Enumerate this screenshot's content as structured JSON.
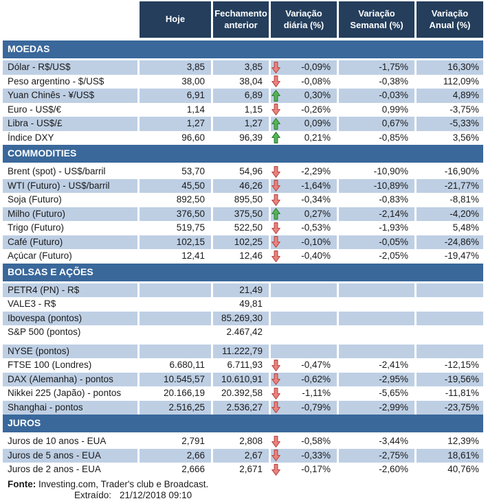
{
  "columns": [
    {
      "label": "Hoje"
    },
    {
      "label": "Fechamento anterior"
    },
    {
      "label": "Variação diária (%)"
    },
    {
      "label": "Variação Semanal (%)"
    },
    {
      "label": "Variação Anual (%)"
    }
  ],
  "sections": [
    {
      "title": "MOEDAS",
      "rows": [
        {
          "label": "Dólar - R$/US$",
          "hoje": "3,85",
          "fechamento": "3,85",
          "arrow": "down",
          "daily": "-0,09%",
          "weekly": "-1,75%",
          "annual": "16,30%"
        },
        {
          "label": "Peso argentino - $/US$",
          "hoje": "38,00",
          "fechamento": "38,04",
          "arrow": "down",
          "daily": "-0,08%",
          "weekly": "-0,38%",
          "annual": "112,09%"
        },
        {
          "label": "Yuan Chinês - ¥/US$",
          "hoje": "6,91",
          "fechamento": "6,89",
          "arrow": "up",
          "daily": "0,30%",
          "weekly": "-0,03%",
          "annual": "4,89%"
        },
        {
          "label": "Euro - US$/€",
          "hoje": "1,14",
          "fechamento": "1,15",
          "arrow": "down",
          "daily": "-0,26%",
          "weekly": "0,99%",
          "annual": "-3,75%"
        },
        {
          "label": "Libra - US$/£",
          "hoje": "1,27",
          "fechamento": "1,27",
          "arrow": "up",
          "daily": "0,09%",
          "weekly": "0,67%",
          "annual": "-5,33%"
        },
        {
          "label": "Índice DXY",
          "hoje": "96,60",
          "fechamento": "96,39",
          "arrow": "up",
          "daily": "0,21%",
          "weekly": "-0,85%",
          "annual": "3,56%"
        }
      ]
    },
    {
      "title": "COMMODITIES",
      "rows": [
        {
          "label": "Brent (spot) - US$/barril",
          "hoje": "53,70",
          "fechamento": "54,96",
          "arrow": "down",
          "daily": "-2,29%",
          "weekly": "-10,90%",
          "annual": "-16,90%"
        },
        {
          "label": "WTI (Futuro) - US$/barril",
          "hoje": "45,50",
          "fechamento": "46,26",
          "arrow": "down",
          "daily": "-1,64%",
          "weekly": "-10,89%",
          "annual": "-21,77%"
        },
        {
          "label": "Soja (Futuro)",
          "hoje": "892,50",
          "fechamento": "895,50",
          "arrow": "down",
          "daily": "-0,34%",
          "weekly": "-0,83%",
          "annual": "-8,81%"
        },
        {
          "label": "Milho (Futuro)",
          "hoje": "376,50",
          "fechamento": "375,50",
          "arrow": "up",
          "daily": "0,27%",
          "weekly": "-2,14%",
          "annual": "-4,20%"
        },
        {
          "label": "Trigo (Futuro)",
          "hoje": "519,75",
          "fechamento": "522,50",
          "arrow": "down",
          "daily": "-0,53%",
          "weekly": "-1,93%",
          "annual": "5,48%"
        },
        {
          "label": "Café (Futuro)",
          "hoje": "102,15",
          "fechamento": "102,25",
          "arrow": "down",
          "daily": "-0,10%",
          "weekly": "-0,05%",
          "annual": "-24,86%"
        },
        {
          "label": "Açúcar (Futuro)",
          "hoje": "12,41",
          "fechamento": "12,46",
          "arrow": "down",
          "daily": "-0,40%",
          "weekly": "-2,05%",
          "annual": "-19,47%"
        }
      ]
    },
    {
      "title": "BOLSAS E AÇÕES",
      "rows": [
        {
          "label": "PETR4 (PN) - R$",
          "hoje": "",
          "fechamento": "21,49",
          "arrow": "",
          "daily": "",
          "weekly": "",
          "annual": ""
        },
        {
          "label": "VALE3 - R$",
          "hoje": "",
          "fechamento": "49,81",
          "arrow": "",
          "daily": "",
          "weekly": "",
          "annual": ""
        },
        {
          "label": "Ibovespa (pontos)",
          "hoje": "",
          "fechamento": "85.269,30",
          "arrow": "",
          "daily": "",
          "weekly": "",
          "annual": ""
        },
        {
          "label": "S&P 500 (pontos)",
          "hoje": "",
          "fechamento": "2.467,42",
          "arrow": "",
          "daily": "",
          "weekly": "",
          "annual": ""
        },
        {
          "label": "NYSE (pontos)",
          "hoje": "",
          "fechamento": "11.222,79",
          "arrow": "",
          "daily": "",
          "weekly": "",
          "annual": "",
          "gap_before": true
        },
        {
          "label": "FTSE 100 (Londres)",
          "hoje": "6.680,11",
          "fechamento": "6.711,93",
          "arrow": "down",
          "daily": "-0,47%",
          "weekly": "-2,41%",
          "annual": "-12,15%"
        },
        {
          "label": "DAX (Alemanha) - pontos",
          "hoje": "10.545,57",
          "fechamento": "10.610,91",
          "arrow": "down",
          "daily": "-0,62%",
          "weekly": "-2,95%",
          "annual": "-19,56%"
        },
        {
          "label": "Nikkei 225 (Japão) - pontos",
          "hoje": "20.166,19",
          "fechamento": "20.392,58",
          "arrow": "down",
          "daily": "-1,11%",
          "weekly": "-5,65%",
          "annual": "-11,81%"
        },
        {
          "label": "Shanghai - pontos",
          "hoje": "2.516,25",
          "fechamento": "2.536,27",
          "arrow": "down",
          "daily": "-0,79%",
          "weekly": "-2,99%",
          "annual": "-23,75%"
        }
      ]
    },
    {
      "title": "JUROS",
      "rows": [
        {
          "label": "Juros de 10 anos - EUA",
          "hoje": "2,791",
          "fechamento": "2,808",
          "arrow": "down",
          "daily": "-0,58%",
          "weekly": "-3,44%",
          "annual": "12,39%"
        },
        {
          "label": "Juros de 5 anos - EUA",
          "hoje": "2,66",
          "fechamento": "2,67",
          "arrow": "down",
          "daily": "-0,33%",
          "weekly": "-2,75%",
          "annual": "18,61%"
        },
        {
          "label": "Juros de 2 anos - EUA",
          "hoje": "2,666",
          "fechamento": "2,671",
          "arrow": "down",
          "daily": "-0,17%",
          "weekly": "-2,60%",
          "annual": "40,76%"
        }
      ]
    }
  ],
  "footer": {
    "fonte_label": "Fonte:",
    "fonte_text": "Investing.com, Trader's club e Broadcast.",
    "extraido_label": "Extraído:",
    "extraido_value": "21/12/2018 09:10"
  },
  "colors": {
    "header_bg": "#243E5C",
    "section_bg": "#3A689B",
    "row_shaded": "#BECFE4",
    "row_plain": "#FFFFFF",
    "header_text": "#FFFFFF",
    "body_text": "#1A1A1A",
    "arrow_up_fill": "#54B454",
    "arrow_up_stroke": "#2E7D32",
    "arrow_down_fill": "#E8837E",
    "arrow_down_stroke": "#B94743"
  }
}
